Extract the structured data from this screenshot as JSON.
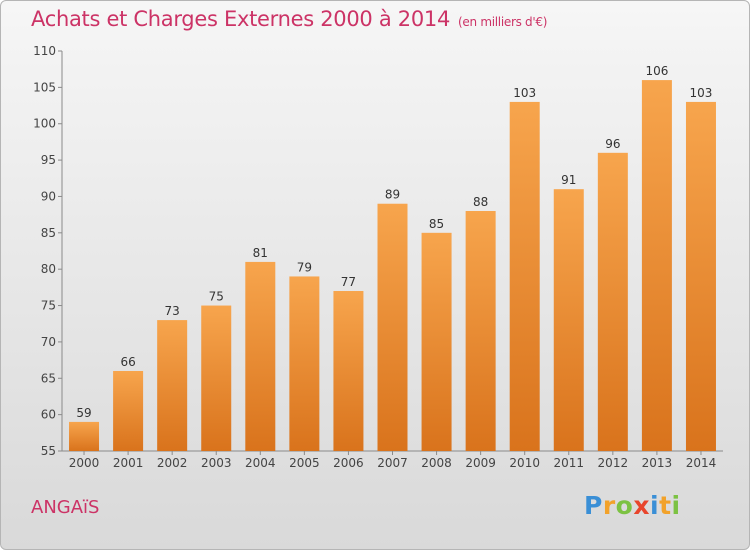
{
  "header": {
    "title": "Achats et Charges Externes 2000 à 2014",
    "unit": "(en milliers d'€)"
  },
  "footer": {
    "place": "ANGAïS",
    "logo": [
      "P",
      "r",
      "o",
      "x",
      "i",
      "t",
      "i"
    ]
  },
  "colors": {
    "title": "#cc3366",
    "bar_top": "#f7a54d",
    "bar_bottom": "#d9731c",
    "axis": "#8a8a8a"
  },
  "chart_data": {
    "type": "bar",
    "categories": [
      "2000",
      "2001",
      "2002",
      "2003",
      "2004",
      "2005",
      "2006",
      "2007",
      "2008",
      "2009",
      "2010",
      "2011",
      "2012",
      "2013",
      "2014"
    ],
    "values": [
      59,
      66,
      73,
      75,
      81,
      79,
      77,
      89,
      85,
      88,
      103,
      91,
      96,
      106,
      103
    ],
    "ylim": [
      55,
      110
    ],
    "yticks": [
      55,
      60,
      65,
      70,
      75,
      80,
      85,
      90,
      95,
      100,
      105,
      110
    ],
    "grid": false
  }
}
